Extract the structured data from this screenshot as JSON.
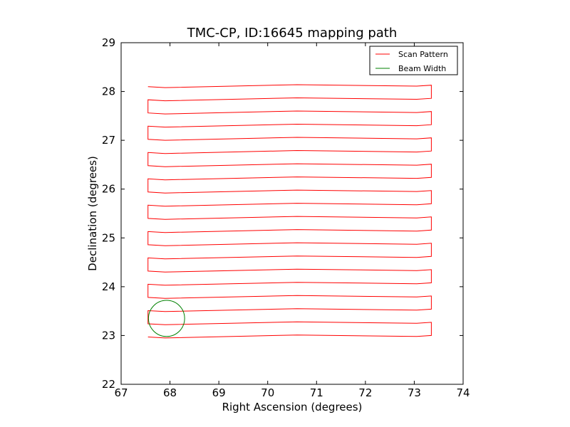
{
  "chart_data": {
    "type": "line",
    "title": "TMC-CP, ID:16645 mapping path",
    "xlabel": "Right Ascension (degrees)",
    "ylabel": "Declination (degrees)",
    "xlim": [
      67,
      74
    ],
    "ylim": [
      22,
      29
    ],
    "xticks": [
      "67",
      "68",
      "69",
      "70",
      "71",
      "72",
      "73",
      "74"
    ],
    "yticks": [
      "22",
      "23",
      "24",
      "25",
      "26",
      "27",
      "28",
      "29"
    ],
    "grid": false,
    "legend": {
      "placement": "top-right",
      "entries": [
        "Scan Pattern",
        "Beam Width"
      ]
    },
    "series": [
      {
        "name": "Scan Pattern",
        "color": "#ff0000",
        "rows": {
          "dec_start": 22.97,
          "dec_end": 28.12,
          "row_step": 0.27,
          "ra_west": 67.5,
          "ra_east": 73.35
        }
      },
      {
        "name": "Beam Width",
        "color": "#008000",
        "circle": {
          "ra_center": 67.93,
          "dec_center": 23.35,
          "radius_deg": 0.37
        }
      }
    ]
  }
}
